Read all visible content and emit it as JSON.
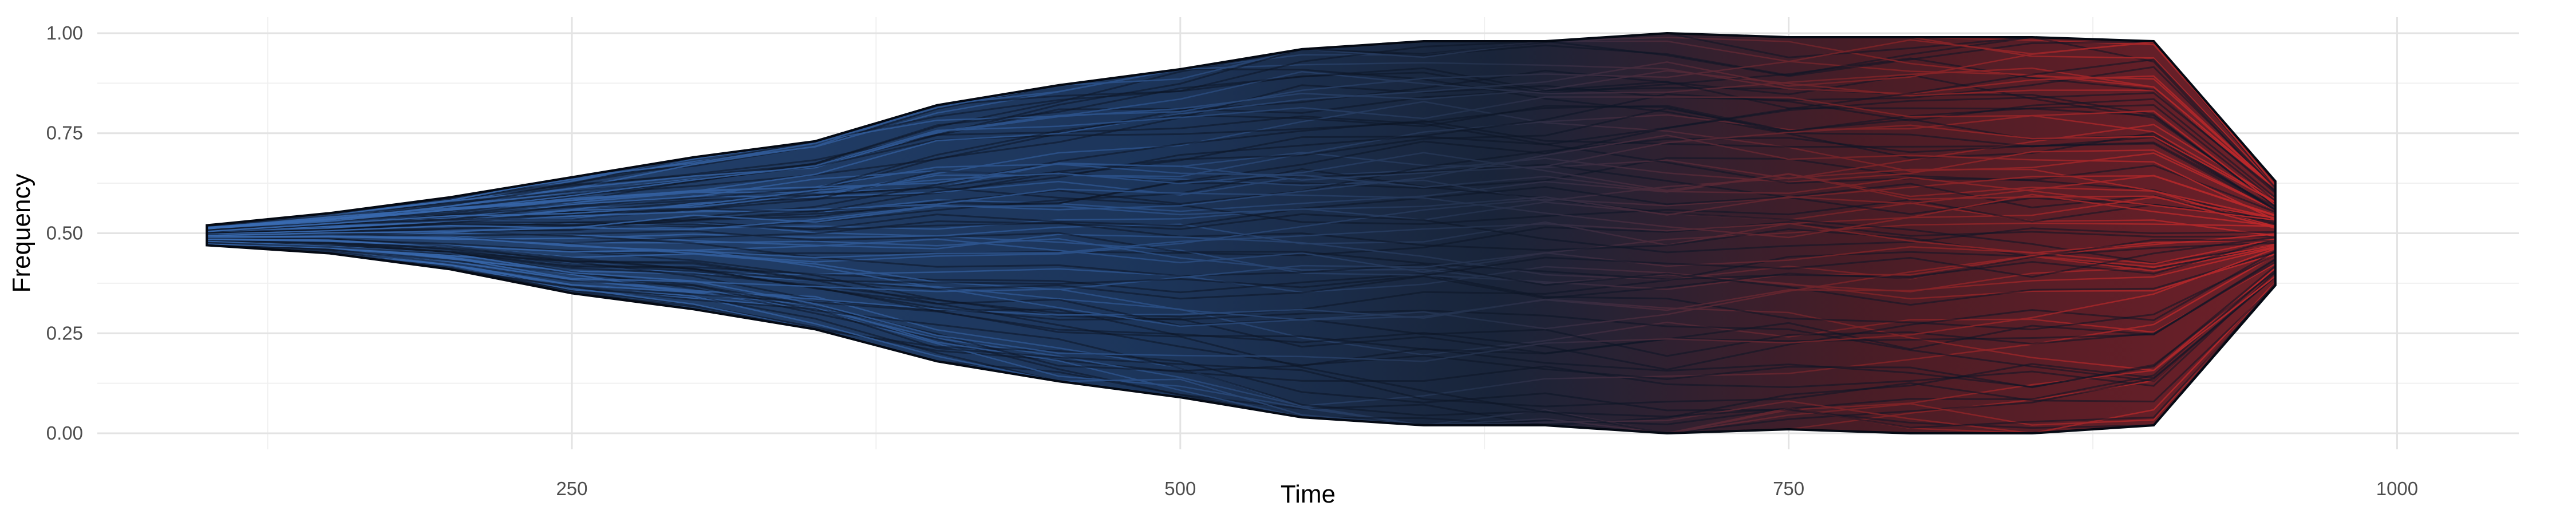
{
  "chart_data": {
    "type": "area",
    "xlabel": "Time",
    "ylabel": "Frequency",
    "xlim": [
      55,
      1050
    ],
    "ylim": [
      0,
      1.0
    ],
    "x_ticks": [
      250,
      500,
      750,
      1000
    ],
    "x_tick_labels": [
      "250",
      "500",
      "750",
      "1000"
    ],
    "y_ticks": [
      0,
      0.25,
      0.5,
      0.75,
      1.0
    ],
    "y_tick_labels": [
      "0.00",
      "0.25",
      "0.50",
      "0.75",
      "1.00"
    ],
    "grid": true,
    "legend": "none",
    "colors": {
      "early": "#3a6db5",
      "late": "#c0282a",
      "dark": "#0c1626"
    },
    "envelope": {
      "x": [
        100,
        150,
        200,
        250,
        300,
        350,
        400,
        450,
        500,
        550,
        600,
        650,
        700,
        750,
        800,
        850,
        900,
        950
      ],
      "upper": [
        0.52,
        0.55,
        0.59,
        0.64,
        0.69,
        0.73,
        0.82,
        0.87,
        0.91,
        0.96,
        0.98,
        0.98,
        1.0,
        0.99,
        0.99,
        0.99,
        0.98,
        0.63
      ],
      "lower": [
        0.47,
        0.45,
        0.41,
        0.35,
        0.31,
        0.26,
        0.18,
        0.13,
        0.09,
        0.04,
        0.02,
        0.02,
        0.0,
        0.01,
        0.0,
        0.0,
        0.02,
        0.37
      ]
    }
  }
}
